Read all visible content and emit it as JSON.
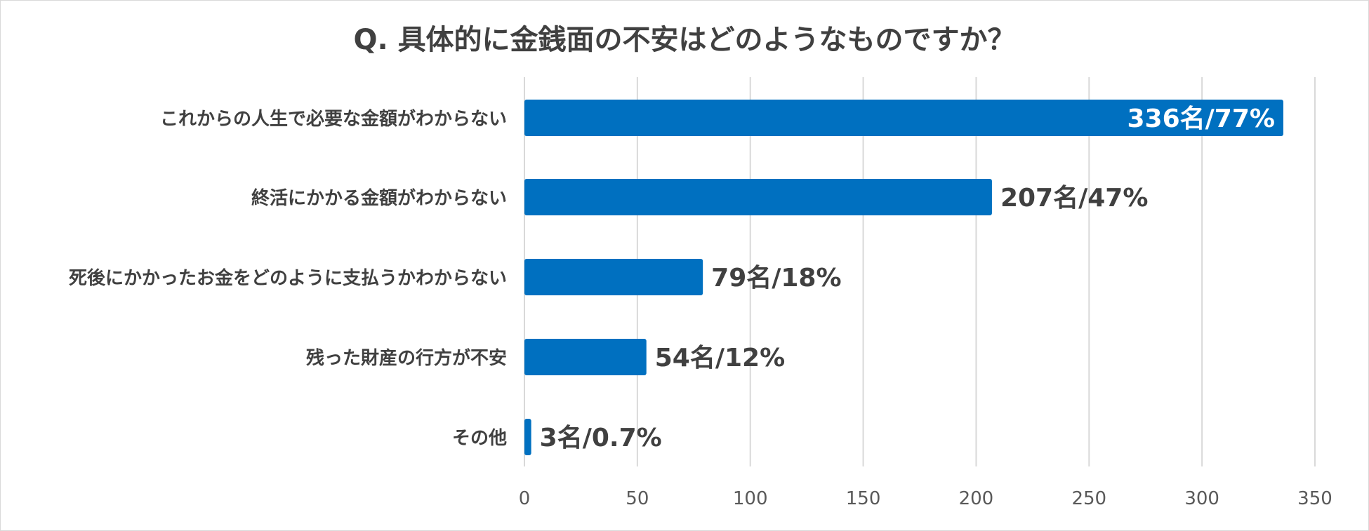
{
  "title": "Q. 具体的に金銭面の不安はどのようなものですか？",
  "chart_data": {
    "type": "bar",
    "orientation": "horizontal",
    "title": "Q. 具体的に金銭面の不安はどのようなものですか？",
    "categories": [
      "これからの人生で必要な金額がわからない",
      "終活にかかる金額がわからない",
      "死後にかかったお金をどのように支払うかわからない",
      "残った財産の行方が不安",
      "その他"
    ],
    "values": [
      336,
      207,
      79,
      54,
      3
    ],
    "data_labels": [
      "336名/77%",
      "207名/47%",
      "79名/18%",
      "54名/12%",
      "3名/0.7%"
    ],
    "xlim": [
      0,
      350
    ],
    "xticks": [
      0,
      50,
      100,
      150,
      200,
      250,
      300,
      350
    ],
    "grid": "vertical",
    "bar_color": "#0070c0",
    "xlabel": "",
    "ylabel": ""
  }
}
